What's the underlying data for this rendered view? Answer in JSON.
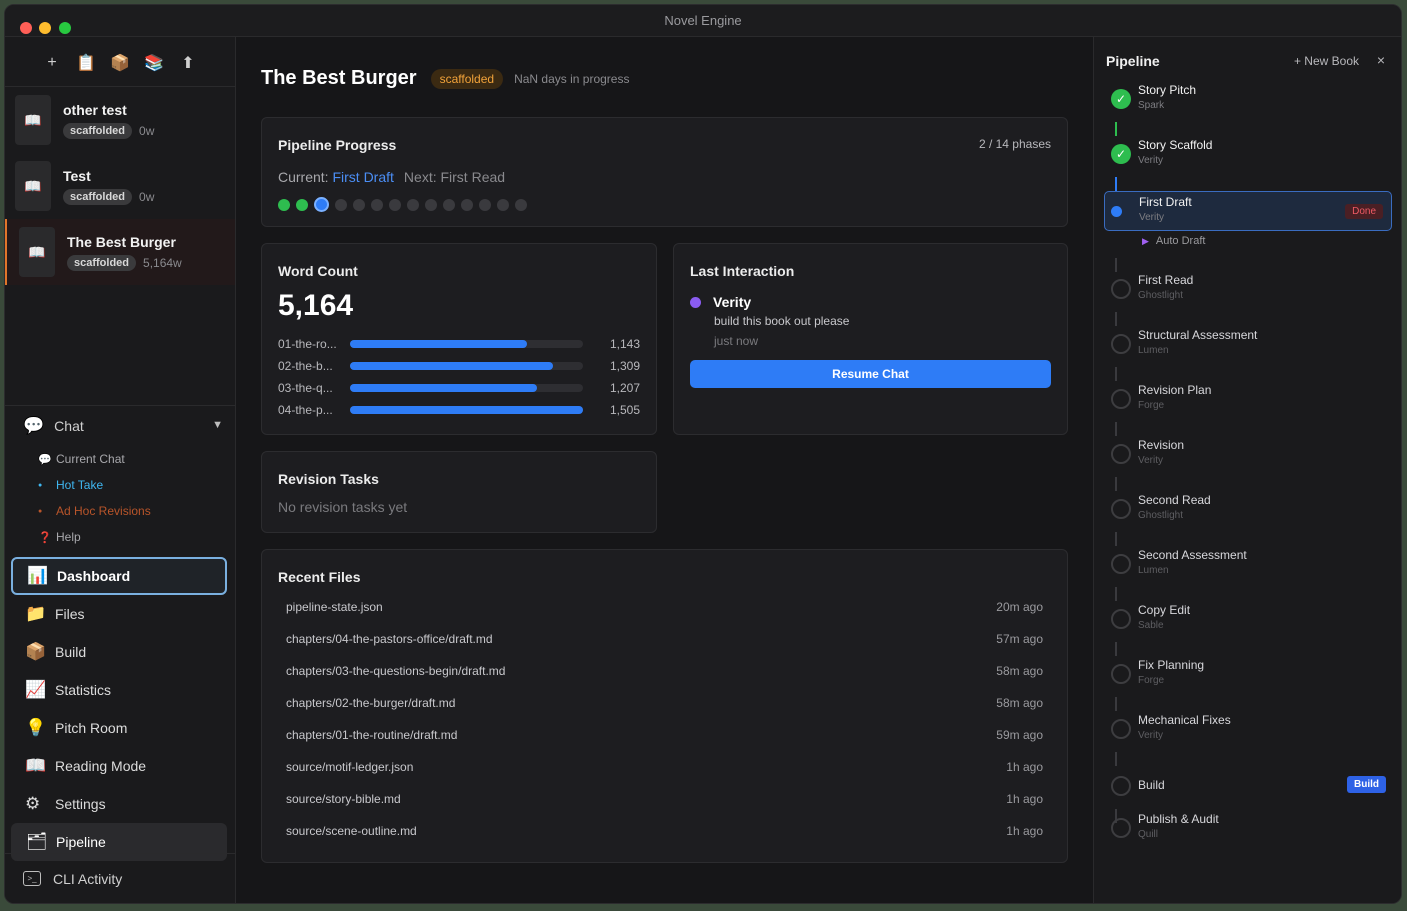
{
  "window": {
    "title": "Novel Engine"
  },
  "toolbar": {
    "icons": [
      "plus-icon",
      "clipboard-icon",
      "package-icon",
      "books-icon",
      "upload-icon"
    ],
    "glyphs": [
      "+",
      "📋",
      "📦",
      "📚",
      "⬆"
    ]
  },
  "books": [
    {
      "title": "other test",
      "status": "scaffolded",
      "count": "0w",
      "active": false
    },
    {
      "title": "Test",
      "status": "scaffolded",
      "count": "0w",
      "active": false
    },
    {
      "title": "The Best Burger",
      "status": "scaffolded",
      "count": "5,164w",
      "active": true
    }
  ],
  "chat": {
    "label": "Chat",
    "items": [
      {
        "label": "Current Chat",
        "icon": "speech-bubble-icon"
      },
      {
        "label": "Hot Take",
        "icon": "dot-icon"
      },
      {
        "label": "Ad Hoc Revisions",
        "icon": "dot-icon"
      },
      {
        "label": "Help",
        "icon": "question-icon"
      }
    ]
  },
  "nav": [
    {
      "label": "Dashboard",
      "icon": "chart-icon",
      "glyph": "📊",
      "state": "selected"
    },
    {
      "label": "Files",
      "icon": "folder-icon",
      "glyph": "📁",
      "state": ""
    },
    {
      "label": "Build",
      "icon": "package-icon",
      "glyph": "📦",
      "state": ""
    },
    {
      "label": "Statistics",
      "icon": "trend-icon",
      "glyph": "📈",
      "state": ""
    },
    {
      "label": "Pitch Room",
      "icon": "lightbulb-icon",
      "glyph": "💡",
      "state": ""
    },
    {
      "label": "Reading Mode",
      "icon": "book-icon",
      "glyph": "📖",
      "state": ""
    },
    {
      "label": "Settings",
      "icon": "gear-icon",
      "glyph": "⚙",
      "state": ""
    },
    {
      "label": "Pipeline",
      "icon": "folder-icon",
      "glyph": "🗂",
      "state": "pipeline"
    }
  ],
  "cli": {
    "label": "CLI Activity"
  },
  "dashboard": {
    "title": "The Best Burger",
    "status": "scaffolded",
    "days": "NaN days in progress",
    "progress": {
      "title": "Pipeline Progress",
      "phase_count": "2 / 14 phases",
      "current_label": "Current: ",
      "current": "First Draft",
      "next": "Next: First Read",
      "completed": 2,
      "total": 14
    },
    "word_count": {
      "title": "Word Count",
      "total": "5,164",
      "chapters": [
        {
          "name": "01-the-ro...",
          "value": 1143,
          "display": "1,143"
        },
        {
          "name": "02-the-b...",
          "value": 1309,
          "display": "1,309"
        },
        {
          "name": "03-the-q...",
          "value": 1207,
          "display": "1,207"
        },
        {
          "name": "04-the-p...",
          "value": 1505,
          "display": "1,505"
        }
      ]
    },
    "last_interaction": {
      "title": "Last Interaction",
      "agent": "Verity",
      "message": "build this book out please",
      "when": "just now",
      "button": "Resume Chat"
    },
    "revision_tasks": {
      "title": "Revision Tasks",
      "empty": "No revision tasks yet"
    },
    "recent_files": {
      "title": "Recent Files",
      "files": [
        {
          "path": "pipeline-state.json",
          "time": "20m ago"
        },
        {
          "path": "chapters/04-the-pastors-office/draft.md",
          "time": "57m ago"
        },
        {
          "path": "chapters/03-the-questions-begin/draft.md",
          "time": "58m ago"
        },
        {
          "path": "chapters/02-the-burger/draft.md",
          "time": "58m ago"
        },
        {
          "path": "chapters/01-the-routine/draft.md",
          "time": "59m ago"
        },
        {
          "path": "source/motif-ledger.json",
          "time": "1h ago"
        },
        {
          "path": "source/story-bible.md",
          "time": "1h ago"
        },
        {
          "path": "source/scene-outline.md",
          "time": "1h ago"
        }
      ]
    }
  },
  "pipeline": {
    "title": "Pipeline",
    "new_book": "+ New Book",
    "close": "×",
    "subtask": "Auto Draft",
    "phases": [
      {
        "name": "Story Pitch",
        "agent": "Spark",
        "state": "done"
      },
      {
        "name": "Story Scaffold",
        "agent": "Verity",
        "state": "done"
      },
      {
        "name": "First Draft",
        "agent": "Verity",
        "state": "current",
        "badge": "Done"
      },
      {
        "name": "First Read",
        "agent": "Ghostlight",
        "state": "pending"
      },
      {
        "name": "Structural Assessment",
        "agent": "Lumen",
        "state": "pending"
      },
      {
        "name": "Revision Plan",
        "agent": "Forge",
        "state": "pending"
      },
      {
        "name": "Revision",
        "agent": "Verity",
        "state": "pending"
      },
      {
        "name": "Second Read",
        "agent": "Ghostlight",
        "state": "pending"
      },
      {
        "name": "Second Assessment",
        "agent": "Lumen",
        "state": "pending"
      },
      {
        "name": "Copy Edit",
        "agent": "Sable",
        "state": "pending"
      },
      {
        "name": "Fix Planning",
        "agent": "Forge",
        "state": "pending"
      },
      {
        "name": "Mechanical Fixes",
        "agent": "Verity",
        "state": "pending"
      },
      {
        "name": "Build",
        "agent": "",
        "state": "pending",
        "badge": "Build"
      },
      {
        "name": "Publish & Audit",
        "agent": "Quill",
        "state": "pending"
      }
    ]
  },
  "colors": {
    "accent": "#2e7cf6",
    "done": "#2ebd4f",
    "status": "#f2a33a"
  }
}
